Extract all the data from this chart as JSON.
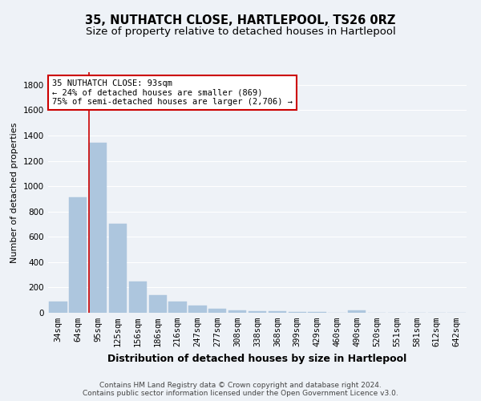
{
  "title": "35, NUTHATCH CLOSE, HARTLEPOOL, TS26 0RZ",
  "subtitle": "Size of property relative to detached houses in Hartlepool",
  "xlabel": "Distribution of detached houses by size in Hartlepool",
  "ylabel": "Number of detached properties",
  "categories": [
    "34sqm",
    "64sqm",
    "95sqm",
    "125sqm",
    "156sqm",
    "186sqm",
    "216sqm",
    "247sqm",
    "277sqm",
    "308sqm",
    "338sqm",
    "368sqm",
    "399sqm",
    "429sqm",
    "460sqm",
    "490sqm",
    "520sqm",
    "551sqm",
    "581sqm",
    "612sqm",
    "642sqm"
  ],
  "values": [
    90,
    912,
    1340,
    700,
    248,
    142,
    87,
    55,
    30,
    20,
    15,
    10,
    8,
    5,
    0,
    22,
    0,
    0,
    0,
    0,
    0
  ],
  "bar_color": "#adc6de",
  "vline_color": "#cc0000",
  "property_line_x": 2,
  "annotation_text": "35 NUTHATCH CLOSE: 93sqm\n← 24% of detached houses are smaller (869)\n75% of semi-detached houses are larger (2,706) →",
  "annotation_box_color": "#ffffff",
  "annotation_box_edge": "#cc0000",
  "ylim": [
    0,
    1900
  ],
  "yticks": [
    0,
    200,
    400,
    600,
    800,
    1000,
    1200,
    1400,
    1600,
    1800
  ],
  "background_color": "#eef2f7",
  "grid_color": "#ffffff",
  "title_fontsize": 10.5,
  "subtitle_fontsize": 9.5,
  "xlabel_fontsize": 9,
  "ylabel_fontsize": 8,
  "tick_fontsize": 7.5,
  "annot_fontsize": 7.5,
  "footer_fontsize": 6.5,
  "footer_line1": "Contains HM Land Registry data © Crown copyright and database right 2024.",
  "footer_line2": "Contains public sector information licensed under the Open Government Licence v3.0."
}
